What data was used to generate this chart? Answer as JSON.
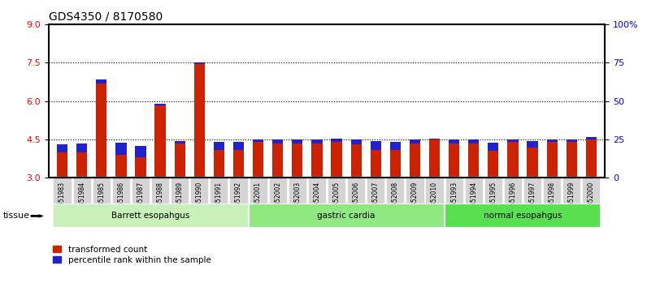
{
  "title": "GDS4350 / 8170580",
  "samples": [
    "GSM851983",
    "GSM851984",
    "GSM851985",
    "GSM851986",
    "GSM851987",
    "GSM851988",
    "GSM851989",
    "GSM851990",
    "GSM851991",
    "GSM851992",
    "GSM852001",
    "GSM852002",
    "GSM852003",
    "GSM852004",
    "GSM852005",
    "GSM852006",
    "GSM852007",
    "GSM852008",
    "GSM852009",
    "GSM852010",
    "GSM851993",
    "GSM851994",
    "GSM851995",
    "GSM851996",
    "GSM851997",
    "GSM851998",
    "GSM851999",
    "GSM852000"
  ],
  "red_values": [
    4.0,
    4.0,
    6.7,
    3.9,
    3.8,
    5.85,
    4.35,
    7.45,
    4.1,
    4.1,
    4.4,
    4.35,
    4.35,
    4.35,
    4.4,
    4.3,
    4.1,
    4.1,
    4.35,
    4.5,
    4.35,
    4.35,
    4.05,
    4.4,
    4.2,
    4.4,
    4.4,
    4.5
  ],
  "blue_values": [
    4.3,
    4.35,
    6.85,
    4.38,
    4.25,
    5.9,
    4.45,
    7.5,
    4.42,
    4.4,
    4.52,
    4.5,
    4.5,
    4.52,
    4.55,
    4.5,
    4.45,
    4.42,
    4.52,
    4.55,
    4.52,
    4.52,
    4.38,
    4.52,
    4.45,
    4.52,
    4.52,
    4.6
  ],
  "y_min": 3.0,
  "y_max": 9.0,
  "y_ticks_left": [
    3.0,
    4.5,
    6.0,
    7.5,
    9.0
  ],
  "y_ticks_right": [
    0,
    25,
    50,
    75,
    100
  ],
  "grid_lines": [
    4.5,
    6.0,
    7.5
  ],
  "groups": [
    {
      "label": "Barrett esopahgus",
      "start": 0,
      "end": 10,
      "color": "#c8f0b8"
    },
    {
      "label": "gastric cardia",
      "start": 10,
      "end": 20,
      "color": "#90e880"
    },
    {
      "label": "normal esopahgus",
      "start": 20,
      "end": 28,
      "color": "#58e050"
    }
  ],
  "red_color": "#cc2200",
  "blue_color": "#2222cc",
  "bar_width": 0.55,
  "tissue_label": "tissue",
  "legend_red": "transformed count",
  "legend_blue": "percentile rank within the sample"
}
